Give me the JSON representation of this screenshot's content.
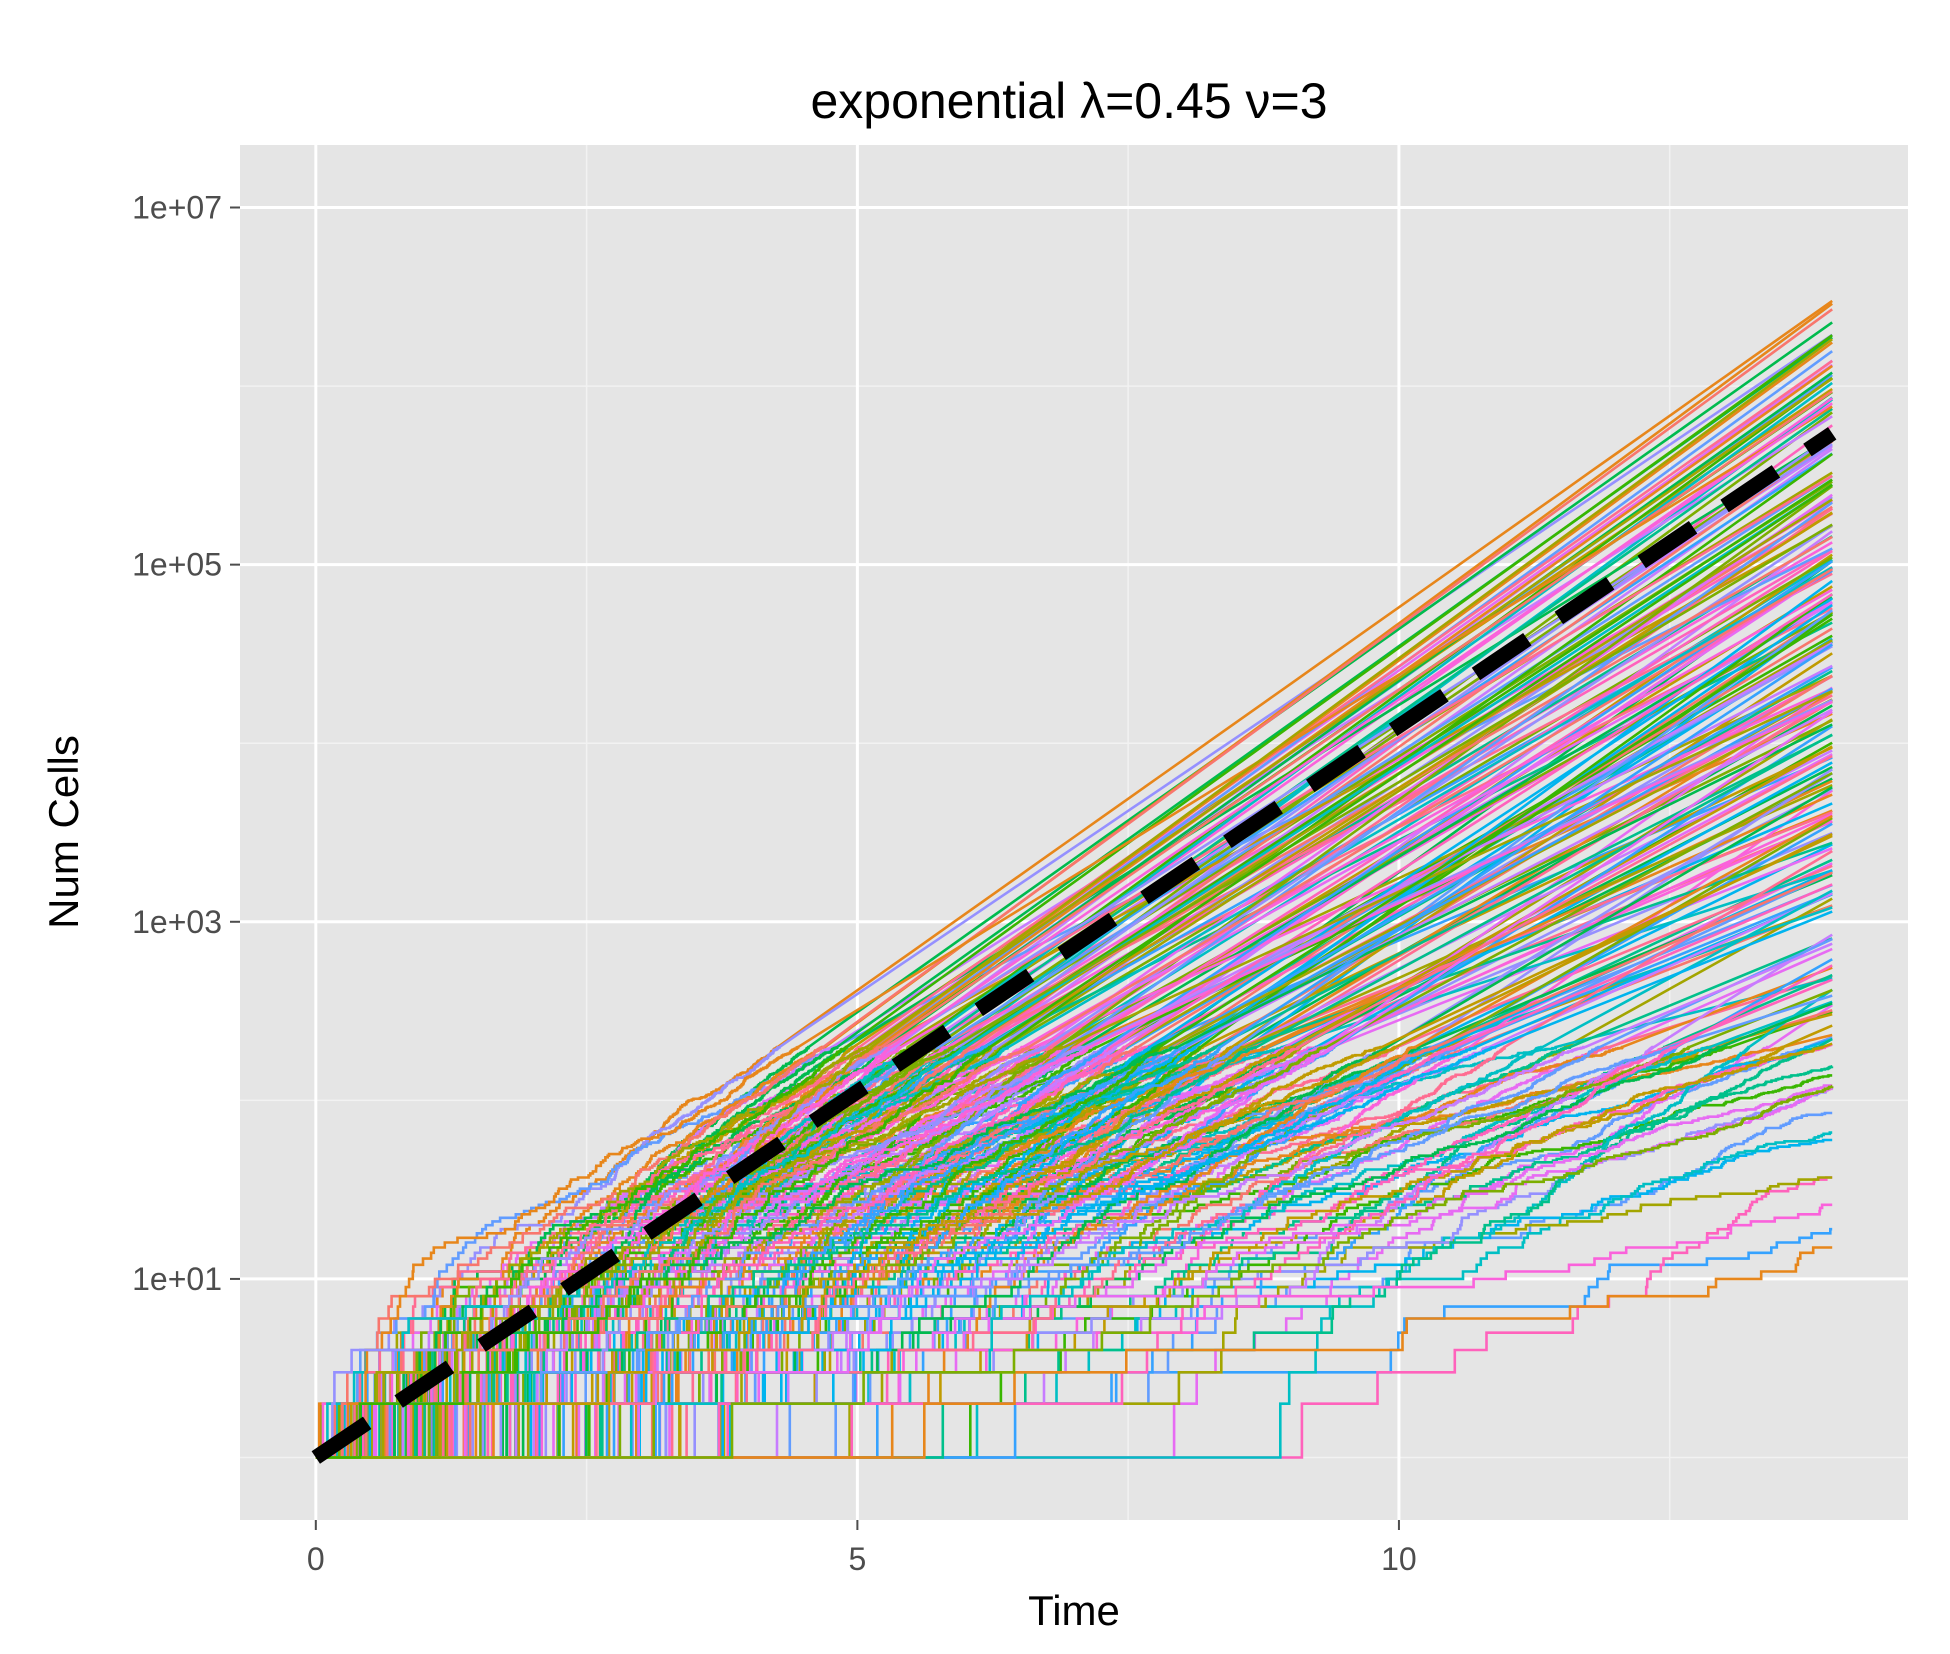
{
  "chart_data": {
    "type": "line",
    "title": "exponential λ=0.45 ν=3",
    "xlabel": "Time",
    "ylabel": "Num Cells",
    "xlim": [
      -0.7,
      14.7
    ],
    "ylim_log10": [
      -0.35,
      7.35
    ],
    "y_scale": "log10",
    "x_ticks": [
      0,
      5,
      10
    ],
    "x_tick_labels": [
      "0",
      "5",
      "10"
    ],
    "y_ticks": [
      10,
      1000,
      100000,
      10000000
    ],
    "y_tick_labels": [
      "1e+01",
      "1e+03",
      "1e+05",
      "1e+07"
    ],
    "grid": true,
    "legend": "none",
    "background": "#e5e5e5",
    "palette": [
      "#f8766d",
      "#e7861b",
      "#c09b00",
      "#a3a500",
      "#7cae00",
      "#39b600",
      "#00bb4e",
      "#00c08b",
      "#00bfc4",
      "#00b4ef",
      "#35a2ff",
      "#619cff",
      "#9590ff",
      "#c77cff",
      "#e76bf3",
      "#fa62db",
      "#ff62bc",
      "#ff6c91"
    ],
    "simulation": {
      "n_series": 240,
      "t_end": 14,
      "start_value": 1,
      "approx_final_range": [
        50,
        2000000
      ]
    },
    "series": [
      {
        "name": "",
        "style": "dashed",
        "color": "#000000",
        "x": [
          0,
          14
        ],
        "y": [
          1,
          544000
        ]
      }
    ]
  }
}
